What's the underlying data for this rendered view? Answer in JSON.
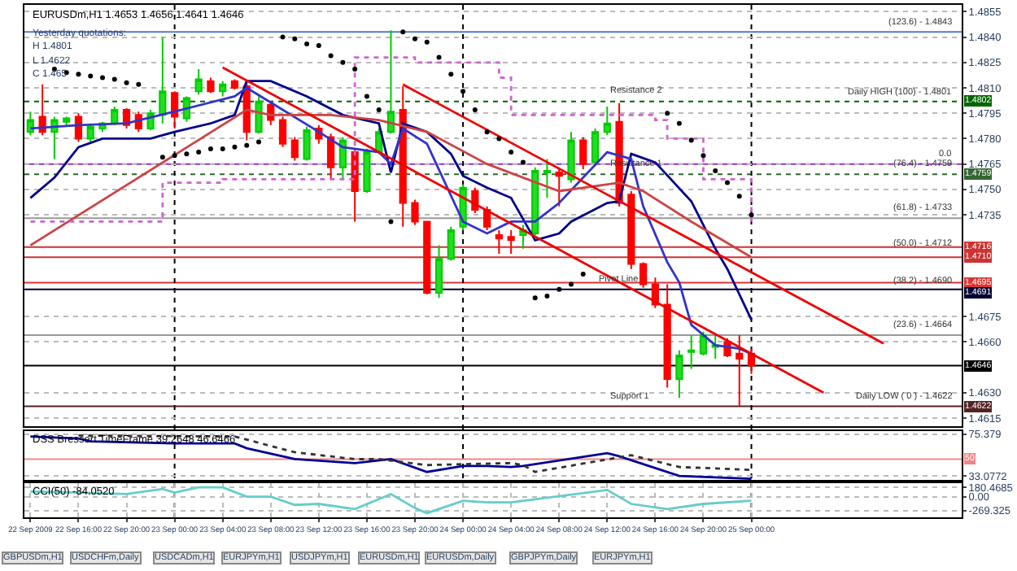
{
  "chart_data": [
    {
      "type": "candlestick",
      "title": "EURUSDm,H1 1.4653 1.4656 1.4641 1.4646",
      "x": [
        "2009-09-22T12:00",
        "2009-09-22T13:00",
        "2009-09-22T14:00",
        "2009-09-22T15:00",
        "2009-09-22T16:00",
        "2009-09-22T17:00",
        "2009-09-22T18:00",
        "2009-09-22T19:00",
        "2009-09-22T20:00",
        "2009-09-22T21:00",
        "2009-09-22T22:00",
        "2009-09-22T23:00",
        "2009-09-23T00:00",
        "2009-09-23T01:00",
        "2009-09-23T02:00",
        "2009-09-23T03:00",
        "2009-09-23T04:00",
        "2009-09-23T05:00",
        "2009-09-23T06:00",
        "2009-09-23T07:00",
        "2009-09-23T08:00",
        "2009-09-23T09:00",
        "2009-09-23T10:00",
        "2009-09-23T11:00",
        "2009-09-23T12:00",
        "2009-09-23T13:00",
        "2009-09-23T14:00",
        "2009-09-23T15:00",
        "2009-09-23T16:00",
        "2009-09-23T17:00",
        "2009-09-23T18:00",
        "2009-09-23T19:00",
        "2009-09-23T20:00",
        "2009-09-23T21:00",
        "2009-09-23T22:00",
        "2009-09-23T23:00",
        "2009-09-24T00:00",
        "2009-09-24T01:00",
        "2009-09-24T02:00",
        "2009-09-24T03:00",
        "2009-09-24T04:00",
        "2009-09-24T05:00",
        "2009-09-24T06:00",
        "2009-09-24T07:00",
        "2009-09-24T08:00",
        "2009-09-24T09:00",
        "2009-09-24T10:00",
        "2009-09-24T11:00",
        "2009-09-24T12:00",
        "2009-09-24T13:00",
        "2009-09-24T14:00",
        "2009-09-24T15:00",
        "2009-09-24T16:00",
        "2009-09-24T17:00",
        "2009-09-24T18:00",
        "2009-09-24T19:00",
        "2009-09-24T20:00",
        "2009-09-24T21:00",
        "2009-09-24T22:00",
        "2009-09-24T23:00",
        "2009-09-25T00:00"
      ],
      "ohlc": [
        [
          1.4784,
          1.4796,
          1.4782,
          1.4791
        ],
        [
          1.4793,
          1.4812,
          1.4782,
          1.4784
        ],
        [
          1.4784,
          1.4793,
          1.4768,
          1.4791
        ],
        [
          1.479,
          1.4793,
          1.4788,
          1.4792
        ],
        [
          1.4793,
          1.4795,
          1.4778,
          1.478
        ],
        [
          1.478,
          1.4788,
          1.4778,
          1.4787
        ],
        [
          1.4786,
          1.479,
          1.4784,
          1.4789
        ],
        [
          1.4789,
          1.4799,
          1.4788,
          1.4797
        ],
        [
          1.4797,
          1.4798,
          1.4786,
          1.4788
        ],
        [
          1.4794,
          1.4796,
          1.4784,
          1.4786
        ],
        [
          1.4786,
          1.4797,
          1.4785,
          1.4795
        ],
        [
          1.4794,
          1.484,
          1.4789,
          1.4808
        ],
        [
          1.4807,
          1.4808,
          1.4786,
          1.4793
        ],
        [
          1.4792,
          1.4805,
          1.479,
          1.4804
        ],
        [
          1.4808,
          1.4821,
          1.4806,
          1.4815
        ],
        [
          1.4814,
          1.4816,
          1.4807,
          1.4808
        ],
        [
          1.4808,
          1.4814,
          1.4805,
          1.4812
        ],
        [
          1.4814,
          1.4815,
          1.4809,
          1.481
        ],
        [
          1.4811,
          1.4814,
          1.4779,
          1.4784
        ],
        [
          1.4784,
          1.4805,
          1.4783,
          1.4802
        ],
        [
          1.48,
          1.4802,
          1.4788,
          1.4791
        ],
        [
          1.4791,
          1.4793,
          1.4775,
          1.4777
        ],
        [
          1.4779,
          1.4781,
          1.4767,
          1.4769
        ],
        [
          1.4768,
          1.4787,
          1.4767,
          1.4785
        ],
        [
          1.4786,
          1.4788,
          1.4777,
          1.478
        ],
        [
          1.4781,
          1.4783,
          1.4756,
          1.4763
        ],
        [
          1.4763,
          1.4781,
          1.4756,
          1.4779
        ],
        [
          1.4772,
          1.4774,
          1.4731,
          1.4749
        ],
        [
          1.4749,
          1.4774,
          1.4748,
          1.4772
        ],
        [
          1.4772,
          1.4786,
          1.4771,
          1.4784
        ],
        [
          1.4784,
          1.4844,
          1.4783,
          1.4796
        ],
        [
          1.4797,
          1.4811,
          1.4728,
          1.4742
        ],
        [
          1.4742,
          1.4744,
          1.4729,
          1.4731
        ],
        [
          1.4731,
          1.4731,
          1.4688,
          1.4689
        ],
        [
          1.4689,
          1.4717,
          1.4686,
          1.4709
        ],
        [
          1.4709,
          1.4728,
          1.4708,
          1.4726
        ],
        [
          1.4728,
          1.4753,
          1.4726,
          1.4751
        ],
        [
          1.4749,
          1.4751,
          1.4736,
          1.4738
        ],
        [
          1.4738,
          1.474,
          1.4726,
          1.4728
        ],
        [
          1.4723,
          1.4726,
          1.4712,
          1.4721
        ],
        [
          1.4722,
          1.4726,
          1.4712,
          1.472
        ],
        [
          1.4723,
          1.4729,
          1.4715,
          1.4726
        ],
        [
          1.4724,
          1.4763,
          1.4723,
          1.4761
        ],
        [
          1.476,
          1.4768,
          1.4745,
          1.4761
        ],
        [
          1.476,
          1.4763,
          1.474,
          1.4758
        ],
        [
          1.4756,
          1.4784,
          1.4754,
          1.4779
        ],
        [
          1.4779,
          1.4781,
          1.4762,
          1.4765
        ],
        [
          1.4766,
          1.4786,
          1.4764,
          1.4784
        ],
        [
          1.4784,
          1.4799,
          1.4782,
          1.4789
        ],
        [
          1.479,
          1.4801,
          1.474,
          1.4742
        ],
        [
          1.4747,
          1.4749,
          1.4703,
          1.4706
        ],
        [
          1.4706,
          1.4707,
          1.4692,
          1.4694
        ],
        [
          1.4694,
          1.4698,
          1.468,
          1.4682
        ],
        [
          1.4682,
          1.4694,
          1.4633,
          1.4638
        ],
        [
          1.4638,
          1.4655,
          1.4627,
          1.4652
        ],
        [
          1.4654,
          1.4664,
          1.4644,
          1.4655
        ],
        [
          1.4653,
          1.4666,
          1.4652,
          1.4664
        ],
        [
          1.4657,
          1.4664,
          1.465,
          1.4658
        ],
        [
          1.466,
          1.4662,
          1.4651,
          1.4652
        ],
        [
          1.4653,
          1.4664,
          1.4622,
          1.465
        ],
        [
          1.4653,
          1.4656,
          1.4641,
          1.4646
        ]
      ],
      "series": [
        {
          "type": "line",
          "color": "#00008b",
          "x": [
            "2009-09-22T12:00",
            "2009-09-22T14:00",
            "2009-09-22T16:00",
            "2009-09-22T18:00",
            "2009-09-22T22:00",
            "2009-09-23T00:00",
            "2009-09-23T03:00",
            "2009-09-23T05:00",
            "2009-09-23T06:00",
            "2009-09-23T08:00",
            "2009-09-23T11:00",
            "2009-09-23T14:00",
            "2009-09-23T17:00",
            "2009-09-23T18:00",
            "2009-09-23T19:00",
            "2009-09-23T21:00",
            "2009-09-23T23:00",
            "2009-09-24T00:00",
            "2009-09-24T02:00",
            "2009-09-24T04:00",
            "2009-09-24T06:00",
            "2009-09-24T08:00",
            "2009-09-24T09:00",
            "2009-09-24T12:00",
            "2009-09-24T13:00",
            "2009-09-24T14:00",
            "2009-09-24T16:00",
            "2009-09-24T19:00",
            "2009-09-24T21:00",
            "2009-09-24T22:00",
            "2009-09-25T00:00"
          ],
          "values": [
            1.4745,
            1.4757,
            1.4775,
            1.478,
            1.478,
            1.4784,
            1.4789,
            1.4794,
            1.4814,
            1.4814,
            1.4805,
            1.4794,
            1.4789,
            1.476,
            1.4789,
            1.4784,
            1.4771,
            1.4758,
            1.4751,
            1.4745,
            1.472,
            1.4724,
            1.4731,
            1.4742,
            1.4743,
            1.4771,
            1.4766,
            1.4743,
            1.4715,
            1.4703,
            1.4673
          ]
        },
        {
          "type": "line",
          "color": "#3333cc",
          "x": [
            "2009-09-22T12:00",
            "2009-09-22T16:00",
            "2009-09-22T20:00",
            "2009-09-23T00:00",
            "2009-09-23T05:00",
            "2009-09-23T06:00",
            "2009-09-23T09:00",
            "2009-09-23T12:00",
            "2009-09-23T14:00",
            "2009-09-23T17:00",
            "2009-09-23T18:00",
            "2009-09-23T19:00",
            "2009-09-23T21:00",
            "2009-09-24T00:00",
            "2009-09-24T02:00",
            "2009-09-24T04:00",
            "2009-09-24T06:00",
            "2009-09-24T08:00",
            "2009-09-24T12:00",
            "2009-09-24T14:00",
            "2009-09-24T15:00",
            "2009-09-24T17:00",
            "2009-09-24T18:00",
            "2009-09-24T19:00",
            "2009-09-24T21:00",
            "2009-09-24T23:00",
            "2009-09-25T00:00"
          ],
          "values": [
            1.4786,
            1.4788,
            1.4789,
            1.4796,
            1.4805,
            1.481,
            1.4797,
            1.4784,
            1.4775,
            1.4772,
            1.4765,
            1.4786,
            1.4777,
            1.4731,
            1.4724,
            1.4731,
            1.4731,
            1.4742,
            1.4772,
            1.4768,
            1.474,
            1.4707,
            1.4695,
            1.467,
            1.4658,
            1.4656,
            1.4653
          ]
        },
        {
          "type": "line",
          "color": "#cc4444",
          "x": [
            "2009-09-22T12:00",
            "2009-09-23T06:00",
            "2009-09-23T08:00",
            "2009-09-23T13:00",
            "2009-09-23T17:00",
            "2009-09-23T21:00",
            "2009-09-24T02:00",
            "2009-09-24T08:00",
            "2009-09-24T13:00",
            "2009-09-24T15:00",
            "2009-09-24T19:00",
            "2009-09-25T00:00"
          ],
          "values": [
            1.4717,
            1.4797,
            1.4794,
            1.4794,
            1.4791,
            1.4784,
            1.4765,
            1.4749,
            1.4754,
            1.4749,
            1.4731,
            1.471
          ]
        },
        {
          "type": "step",
          "color": "#cc66cc",
          "line_style": "dotted",
          "x": [
            "2009-09-22T12:00",
            "2009-09-22T19:00",
            "2009-09-22T23:00",
            "2009-09-23T04:00",
            "2009-09-23T14:00",
            "2009-09-23T15:00",
            "2009-09-23T18:00",
            "2009-09-23T20:00",
            "2009-09-24T03:00",
            "2009-09-24T04:00",
            "2009-09-24T16:00",
            "2009-09-24T17:00",
            "2009-09-24T20:00",
            "2009-09-25T00:00"
          ],
          "values": [
            1.4731,
            1.4731,
            1.4754,
            1.4756,
            1.4756,
            1.4828,
            1.4828,
            1.4825,
            1.4816,
            1.4794,
            1.4791,
            1.478,
            1.4756,
            1.4728
          ]
        },
        {
          "type": "line",
          "color": "#ee0000",
          "x": [
            "2009-09-23T04:00",
            "2009-09-25T06:00"
          ],
          "values": [
            1.4822,
            1.463
          ]
        },
        {
          "type": "line",
          "color": "#ee0000",
          "x": [
            "2009-09-23T19:00",
            "2009-09-25T11:00"
          ],
          "values": [
            1.4812,
            1.4659
          ]
        },
        {
          "type": "scatter",
          "color": "#000000",
          "marker": "circle",
          "x": [
            "2009-09-22T14:00",
            "2009-09-22T15:00",
            "2009-09-22T16:00",
            "2009-09-22T17:00",
            "2009-09-22T18:00",
            "2009-09-22T19:00",
            "2009-09-22T20:00",
            "2009-09-22T21:00",
            "2009-09-22T23:00",
            "2009-09-23T00:00",
            "2009-09-23T01:00",
            "2009-09-23T02:00",
            "2009-09-23T03:00",
            "2009-09-23T04:00",
            "2009-09-23T05:00",
            "2009-09-23T06:00",
            "2009-09-23T07:00",
            "2009-09-23T09:00",
            "2009-09-23T10:00",
            "2009-09-23T11:00",
            "2009-09-23T12:00",
            "2009-09-23T13:00",
            "2009-09-23T14:00",
            "2009-09-23T15:00",
            "2009-09-23T16:00",
            "2009-09-23T17:00",
            "2009-09-23T18:00",
            "2009-09-23T19:00",
            "2009-09-23T20:00",
            "2009-09-23T21:00",
            "2009-09-23T22:00",
            "2009-09-23T23:00",
            "2009-09-24T00:00",
            "2009-09-24T01:00",
            "2009-09-24T02:00",
            "2009-09-24T03:00",
            "2009-09-24T04:00",
            "2009-09-24T05:00",
            "2009-09-24T06:00",
            "2009-09-24T07:00",
            "2009-09-24T08:00",
            "2009-09-24T09:00",
            "2009-09-24T10:00",
            "2009-09-24T17:00",
            "2009-09-24T18:00",
            "2009-09-24T19:00",
            "2009-09-24T20:00",
            "2009-09-24T21:00",
            "2009-09-24T22:00",
            "2009-09-24T23:00",
            "2009-09-25T00:00"
          ],
          "values": [
            1.4821,
            1.4819,
            1.4818,
            1.4817,
            1.4816,
            1.4815,
            1.4813,
            1.4812,
            1.4769,
            1.477,
            1.4771,
            1.4772,
            1.4774,
            1.4774,
            1.4775,
            1.4776,
            1.4778,
            1.484,
            1.4839,
            1.4836,
            1.4835,
            1.4829,
            1.4825,
            1.4821,
            1.4805,
            1.4797,
            1.4731,
            1.4843,
            1.4839,
            1.4837,
            1.4828,
            1.4818,
            1.4808,
            1.4797,
            1.4784,
            1.478,
            1.4772,
            1.4766,
            1.4686,
            1.4687,
            1.4691,
            1.4694,
            1.47,
            1.4795,
            1.4789,
            1.4779,
            1.477,
            1.4761,
            1.4754,
            1.4746,
            1.4735
          ]
        }
      ],
      "ref_lines": [
        {
          "axis": "y",
          "value": 1.4843,
          "label": null,
          "color": "#5577cc"
        },
        {
          "axis": "y",
          "value": 1.4802,
          "label": "1.4802",
          "color": "#006600",
          "line_style": "dotted"
        },
        {
          "axis": "y",
          "value": 1.4765,
          "label": null,
          "color": "#9933cc"
        },
        {
          "axis": "y",
          "value": 1.4759,
          "label": "1.4759",
          "color": "#336633",
          "line_style": "dotted"
        },
        {
          "axis": "y",
          "value": 1.4733,
          "label": null,
          "color": "#999999"
        },
        {
          "axis": "y",
          "value": 1.4716,
          "label": "1.4716",
          "color": "#cc3333"
        },
        {
          "axis": "y",
          "value": 1.471,
          "label": "1.4710",
          "color": "#cc3333"
        },
        {
          "axis": "y",
          "value": 1.4695,
          "label": "1.4695",
          "color": "#dd3333"
        },
        {
          "axis": "y",
          "value": 1.4691,
          "label": "1.4691",
          "color": "#000033"
        },
        {
          "axis": "y",
          "value": 1.4664,
          "label": null,
          "color": "#999999"
        },
        {
          "axis": "y",
          "value": 1.4646,
          "label": "1.4646",
          "color": "#000000"
        },
        {
          "axis": "y",
          "value": 1.4622,
          "label": "1.4622",
          "color": "#552222"
        },
        {
          "axis": "x",
          "value": "2009-09-23T00:00",
          "label": null,
          "color": "#000000",
          "line_style": "dotted"
        },
        {
          "axis": "x",
          "value": "2009-09-24T00:00",
          "label": null,
          "color": "#000000",
          "line_style": "dotted"
        },
        {
          "axis": "x",
          "value": "2009-09-25T00:00",
          "label": null,
          "color": "#000000",
          "line_style": "dotted"
        }
      ],
      "annotations": [
        "Yesterday quotations:",
        "H 1.4801",
        "L 1.4622",
        "C 1.465",
        {
          "text": "(123.6) - 1.4843",
          "x": "2009-09-25T17:00",
          "y": 1.4843
        },
        {
          "text": "Daily HIGH (100) - 1.4801",
          "x": "2009-09-25T17:00",
          "y": 1.4801
        },
        {
          "text": "0.0",
          "x": "2009-09-25T17:00",
          "y": 1.4765
        },
        {
          "text": "(76.4) - 1.4759",
          "x": "2009-09-25T17:00",
          "y": 1.4759
        },
        {
          "text": "(61.8) - 1.4733",
          "x": "2009-09-25T17:00",
          "y": 1.4733
        },
        {
          "text": "(50.0) - 1.4712",
          "x": "2009-09-25T17:00",
          "y": 1.4712
        },
        {
          "text": "(38.2) - 1.4690",
          "x": "2009-09-25T17:00",
          "y": 1.469
        },
        {
          "text": "(23.6) - 1.4664",
          "x": "2009-09-25T17:00",
          "y": 1.4664
        },
        {
          "text": "Daily LOW ( 0 ) - 1.4622",
          "x": "2009-09-25T17:00",
          "y": 1.4622
        },
        {
          "text": "Resistance 2",
          "x": "2009-09-24T12:00",
          "y": 1.4802
        },
        {
          "text": "Resistance 1",
          "x": "2009-09-24T12:00",
          "y": 1.4759
        },
        {
          "text": "Pivot Line",
          "x": "2009-09-24T11:00",
          "y": 1.4691
        },
        {
          "text": "Support 1",
          "x": "2009-09-24T12:00",
          "y": 1.4622
        }
      ],
      "xlim": [
        "2009-09-22T11:30",
        "2009-09-25T17:30"
      ],
      "ylim": [
        1.461,
        1.4859
      ],
      "yticks": [
        {
          "value": 1.4855,
          "label": "1.4855"
        },
        {
          "value": 1.484,
          "label": "1.4840"
        },
        {
          "value": 1.4825,
          "label": "1.4825"
        },
        {
          "value": 1.481,
          "label": "1.4810"
        },
        {
          "value": 1.4795,
          "label": "1.4795"
        },
        {
          "value": 1.478,
          "label": "1.4780"
        },
        {
          "value": 1.4765,
          "label": "1.4765"
        },
        {
          "value": 1.475,
          "label": "1.4750"
        },
        {
          "value": 1.4735,
          "label": "1.4735"
        },
        {
          "value": 1.4675,
          "label": "1.4675"
        },
        {
          "value": 1.466,
          "label": "1.4660"
        },
        {
          "value": 1.463,
          "label": "1.4630"
        },
        {
          "value": 1.4615,
          "label": "1.4615"
        }
      ],
      "tick_labels": "y",
      "grid": true
    },
    {
      "type": "line",
      "title": "DSS Bressert TimeFrame 39.2648 46.6466",
      "series": [
        {
          "type": "line",
          "color": "#000099",
          "x": [
            "2009-09-22T12:00",
            "2009-09-22T16:00",
            "2009-09-22T17:00",
            "2009-09-23T00:00",
            "2009-09-23T05:00",
            "2009-09-23T06:00",
            "2009-09-23T10:00",
            "2009-09-23T15:00",
            "2009-09-23T18:00",
            "2009-09-23T21:00",
            "2009-09-24T00:00",
            "2009-09-24T02:00",
            "2009-09-24T04:00",
            "2009-09-24T05:00",
            "2009-09-24T12:00",
            "2009-09-24T13:00",
            "2009-09-24T18:00",
            "2009-09-25T00:00"
          ],
          "values": [
            73,
            71,
            68,
            66,
            66,
            61,
            50,
            46,
            50,
            37,
            43,
            43,
            42,
            43,
            56,
            53,
            33,
            30
          ]
        },
        {
          "type": "line",
          "color": "#333333",
          "line_style": "dotted",
          "x": [
            "2009-09-22T16:00",
            "2009-09-23T05:00",
            "2009-09-23T10:00",
            "2009-09-23T15:00",
            "2009-09-23T17:00",
            "2009-09-23T21:00",
            "2009-09-24T04:00",
            "2009-09-24T05:00",
            "2009-09-24T06:00",
            "2009-09-24T14:00",
            "2009-09-24T18:00",
            "2009-09-25T00:00"
          ],
          "values": [
            74,
            73,
            57,
            50,
            50,
            44,
            46,
            44,
            37,
            54,
            42,
            39
          ]
        }
      ],
      "ref_lines": [
        {
          "axis": "y",
          "value": 50,
          "label": "50",
          "color": "#ee8888"
        }
      ],
      "xlim": [
        "2009-09-22T11:30",
        "2009-09-25T17:30"
      ],
      "ylim": [
        28.8,
        78.2
      ],
      "yticks": [
        75.379,
        33.0772
      ],
      "tick_labels": "y",
      "grid": true
    },
    {
      "type": "line",
      "title": "CCI(50) -84.0520",
      "series": [
        {
          "type": "line",
          "color": "#66cccc",
          "x": [
            "2009-09-22T12:00",
            "2009-09-22T16:00",
            "2009-09-22T20:00",
            "2009-09-22T23:00",
            "2009-09-23T00:00",
            "2009-09-23T02:00",
            "2009-09-23T04:00",
            "2009-09-23T06:00",
            "2009-09-23T08:00",
            "2009-09-23T10:00",
            "2009-09-23T12:00",
            "2009-09-23T15:00",
            "2009-09-23T18:00",
            "2009-09-23T20:00",
            "2009-09-23T21:00",
            "2009-09-24T00:00",
            "2009-09-24T02:00",
            "2009-09-24T04:00",
            "2009-09-24T12:00",
            "2009-09-24T14:00",
            "2009-09-24T17:00",
            "2009-09-24T20:00",
            "2009-09-25T00:00"
          ],
          "values": [
            100,
            80,
            50,
            150,
            80,
            180,
            180,
            0,
            0,
            -160,
            -140,
            -240,
            50,
            -220,
            -320,
            -80,
            -110,
            -110,
            130,
            -140,
            -240,
            -140,
            -80
          ]
        }
      ],
      "xlim": [
        "2009-09-22T11:30",
        "2009-09-25T17:30"
      ],
      "ylim": [
        -400,
        260
      ],
      "yticks": [
        {
          "value": 180.4685,
          "label": "180.4685"
        },
        {
          "value": 0,
          "label": "0.00"
        },
        {
          "value": -269.325,
          "label": "-269.325"
        }
      ],
      "xticks": [
        {
          "value": "2009-09-22T12:00",
          "label": "22 Sep 2009"
        },
        {
          "value": "2009-09-22T16:00",
          "label": "22 Sep 16:00"
        },
        {
          "value": "2009-09-22T20:00",
          "label": "22 Sep 20:00"
        },
        {
          "value": "2009-09-23T00:00",
          "label": "23 Sep 00:00"
        },
        {
          "value": "2009-09-23T04:00",
          "label": "23 Sep 04:00"
        },
        {
          "value": "2009-09-23T08:00",
          "label": "23 Sep 08:00"
        },
        {
          "value": "2009-09-23T12:00",
          "label": "23 Sep 12:00"
        },
        {
          "value": "2009-09-23T16:00",
          "label": "23 Sep 16:00"
        },
        {
          "value": "2009-09-23T20:00",
          "label": "23 Sep 20:00"
        },
        {
          "value": "2009-09-24T00:00",
          "label": "24 Sep 00:00"
        },
        {
          "value": "2009-09-24T04:00",
          "label": "24 Sep 04:00"
        },
        {
          "value": "2009-09-24T08:00",
          "label": "24 Sep 08:00"
        },
        {
          "value": "2009-09-24T12:00",
          "label": "24 Sep 12:00"
        },
        {
          "value": "2009-09-24T16:00",
          "label": "24 Sep 16:00"
        },
        {
          "value": "2009-09-24T20:00",
          "label": "24 Sep 20:00"
        },
        {
          "value": "2009-09-25T00:00",
          "label": "25 Sep 00:00"
        }
      ],
      "annotations": [
        "GBPUSDm,H1",
        "USDCHFm,Daily",
        "USDCADm,H1",
        "EURJPYm,H1",
        "USDJPYm,H1",
        "EURUSDm,H1",
        "EURUSDm,Daily",
        "GBPJPYm,Daily",
        "EURJPYm,H1"
      ],
      "grid": true
    }
  ]
}
